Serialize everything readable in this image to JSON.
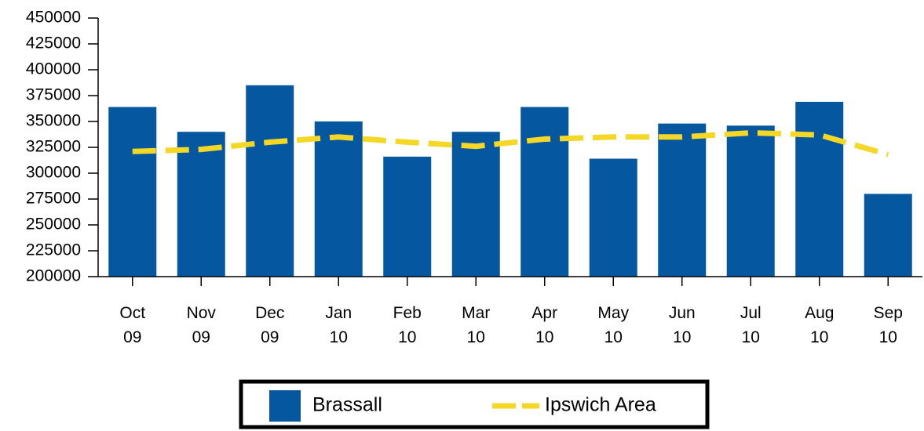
{
  "chart_data": {
    "type": "bar",
    "categories": [
      "Oct 09",
      "Nov 09",
      "Dec 09",
      "Jan 10",
      "Feb 10",
      "Mar 10",
      "Apr 10",
      "May 10",
      "Jun 10",
      "Jul 10",
      "Aug 10",
      "Sep 10"
    ],
    "series": [
      {
        "name": "Brassall",
        "type": "bar",
        "color": "#0558a0",
        "values": [
          364000,
          340000,
          385000,
          350000,
          316000,
          340000,
          364000,
          314000,
          348000,
          346000,
          369000,
          280000
        ]
      },
      {
        "name": "Ipswich Area",
        "type": "line",
        "color": "#f5d726",
        "values": [
          321000,
          323000,
          330000,
          335000,
          330000,
          326000,
          333000,
          335000,
          335000,
          339000,
          337000,
          318000
        ]
      }
    ],
    "ylim": [
      200000,
      450000
    ],
    "yticks": [
      200000,
      225000,
      250000,
      275000,
      300000,
      325000,
      350000,
      375000,
      400000,
      425000,
      450000
    ],
    "legend": "bottom"
  }
}
